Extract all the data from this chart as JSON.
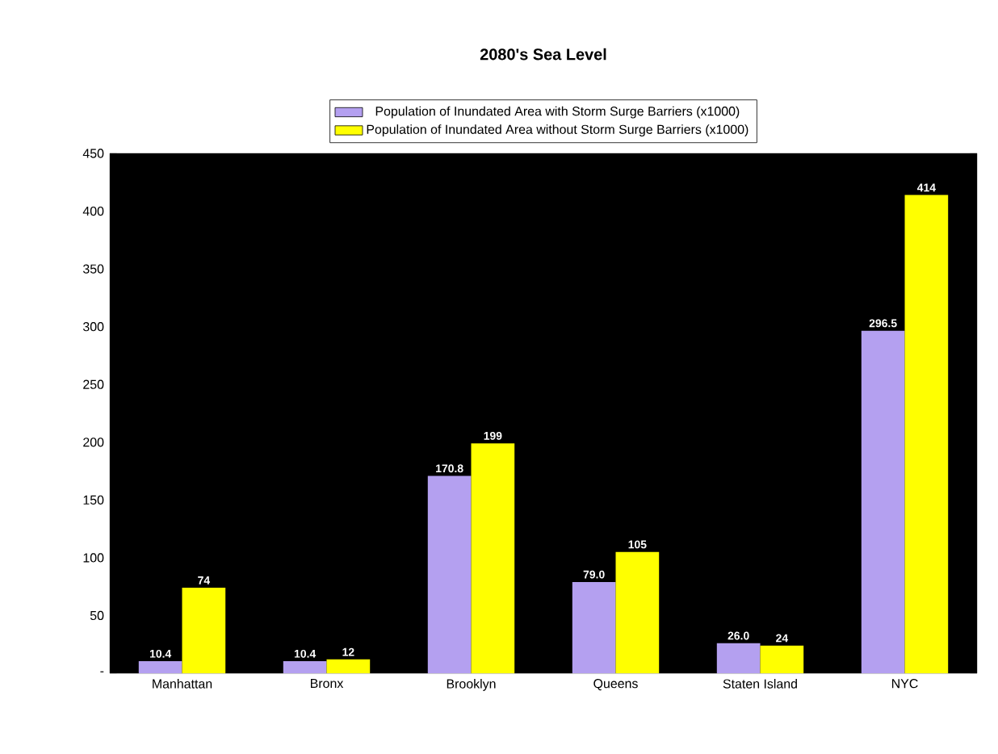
{
  "chart_data": {
    "type": "bar",
    "title": "2080's Sea Level",
    "categories": [
      "Manhattan",
      "Bronx",
      "Brooklyn",
      "Queens",
      "Staten Island",
      "NYC"
    ],
    "series": [
      {
        "name": "Population of Inundated Area with Storm Surge Barriers (x1000)",
        "color": "#b4a0f0",
        "values": [
          10.4,
          10.4,
          170.8,
          79.0,
          26.0,
          296.5
        ],
        "value_labels": [
          "10.4",
          "10.4",
          "170.8",
          "79.0",
          "26.0",
          "296.5"
        ]
      },
      {
        "name": "Population of Inundated Area without Storm Surge Barriers (x1000)",
        "color": "#ffff00",
        "values": [
          74,
          12,
          199,
          105,
          24,
          414
        ],
        "value_labels": [
          "74",
          "12",
          "199",
          "105",
          "24",
          "414"
        ]
      }
    ],
    "ylim": [
      0,
      450
    ],
    "yticks": [
      {
        "value": 0,
        "label": "-"
      },
      50,
      100,
      150,
      200,
      250,
      300,
      350,
      400,
      450
    ],
    "legend": "top",
    "grid": false
  }
}
